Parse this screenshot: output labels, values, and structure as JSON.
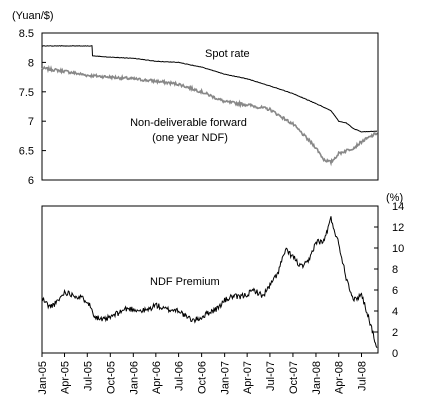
{
  "chart_data": [
    {
      "type": "line",
      "ylabel": "(Yuan/$)",
      "ylim": [
        6,
        8.5
      ],
      "yticks": [
        "8.5",
        "8",
        "7.5",
        "7",
        "6.5",
        "6"
      ],
      "series": [
        {
          "name": "Spot rate",
          "color": "#000000",
          "x": [
            "2005-01",
            "2005-07-20",
            "2005-07-22",
            "2005-10",
            "2006-01",
            "2006-04",
            "2006-07",
            "2006-10",
            "2007-01",
            "2007-04",
            "2007-07",
            "2007-10",
            "2008-01",
            "2008-03",
            "2008-04",
            "2008-05",
            "2008-06",
            "2008-07",
            "2008-09"
          ],
          "values": [
            8.28,
            8.28,
            8.11,
            8.09,
            8.07,
            8.02,
            8.0,
            7.92,
            7.8,
            7.72,
            7.6,
            7.47,
            7.3,
            7.18,
            7.0,
            6.97,
            6.87,
            6.82,
            6.83
          ]
        },
        {
          "name": "Non-deliverable forward\n(one year NDF)",
          "color": "#888888",
          "x": [
            "2005-01",
            "2005-04",
            "2005-07",
            "2005-10",
            "2006-01",
            "2006-04",
            "2006-07",
            "2006-10",
            "2007-01",
            "2007-04",
            "2007-07",
            "2007-10",
            "2008-01",
            "2008-02",
            "2008-03",
            "2008-04",
            "2008-05",
            "2008-06",
            "2008-07",
            "2008-09"
          ],
          "values": [
            7.9,
            7.85,
            7.78,
            7.75,
            7.72,
            7.68,
            7.63,
            7.5,
            7.33,
            7.28,
            7.2,
            6.95,
            6.55,
            6.35,
            6.3,
            6.45,
            6.5,
            6.55,
            6.65,
            6.8
          ]
        }
      ]
    },
    {
      "type": "line",
      "ylabel": "(%)",
      "ylim": [
        0,
        14
      ],
      "yticks": [
        "14",
        "12",
        "10",
        "8",
        "6",
        "4",
        "2",
        "0"
      ],
      "xticks": [
        "Jan-05",
        "Apr-05",
        "Jul-05",
        "Oct-05",
        "Jan-06",
        "Apr-06",
        "Jul-06",
        "Oct-06",
        "Jan-07",
        "Apr-07",
        "Jul-07",
        "Oct-07",
        "Jan-08",
        "Apr-08",
        "Jul-08"
      ],
      "series": [
        {
          "name": "NDF Premium",
          "color": "#000000",
          "x": [
            "2005-01",
            "2005-02",
            "2005-03",
            "2005-04",
            "2005-05",
            "2005-06",
            "2005-07",
            "2005-08",
            "2005-09",
            "2005-10",
            "2005-11",
            "2005-12",
            "2006-01",
            "2006-02",
            "2006-03",
            "2006-04",
            "2006-05",
            "2006-06",
            "2006-07",
            "2006-08",
            "2006-09",
            "2006-10",
            "2006-11",
            "2006-12",
            "2007-01",
            "2007-02",
            "2007-03",
            "2007-04",
            "2007-05",
            "2007-06",
            "2007-07",
            "2007-08",
            "2007-09",
            "2007-10",
            "2007-11",
            "2007-12",
            "2008-01",
            "2008-02",
            "2008-03",
            "2008-04",
            "2008-05",
            "2008-06",
            "2008-07",
            "2008-08",
            "2008-09"
          ],
          "values": [
            5.2,
            4.4,
            4.8,
            5.8,
            5.6,
            5.3,
            5.0,
            3.5,
            3.1,
            3.4,
            3.8,
            4.2,
            4.2,
            4.0,
            4.1,
            4.6,
            4.2,
            4.1,
            4.1,
            3.4,
            3.1,
            3.4,
            3.9,
            4.2,
            5.0,
            5.4,
            5.3,
            5.6,
            6.0,
            5.4,
            6.4,
            7.6,
            9.8,
            9.2,
            8.2,
            8.6,
            10.6,
            10.6,
            12.8,
            10.4,
            7.2,
            5.0,
            5.6,
            3.2,
            0.5
          ]
        }
      ]
    }
  ]
}
